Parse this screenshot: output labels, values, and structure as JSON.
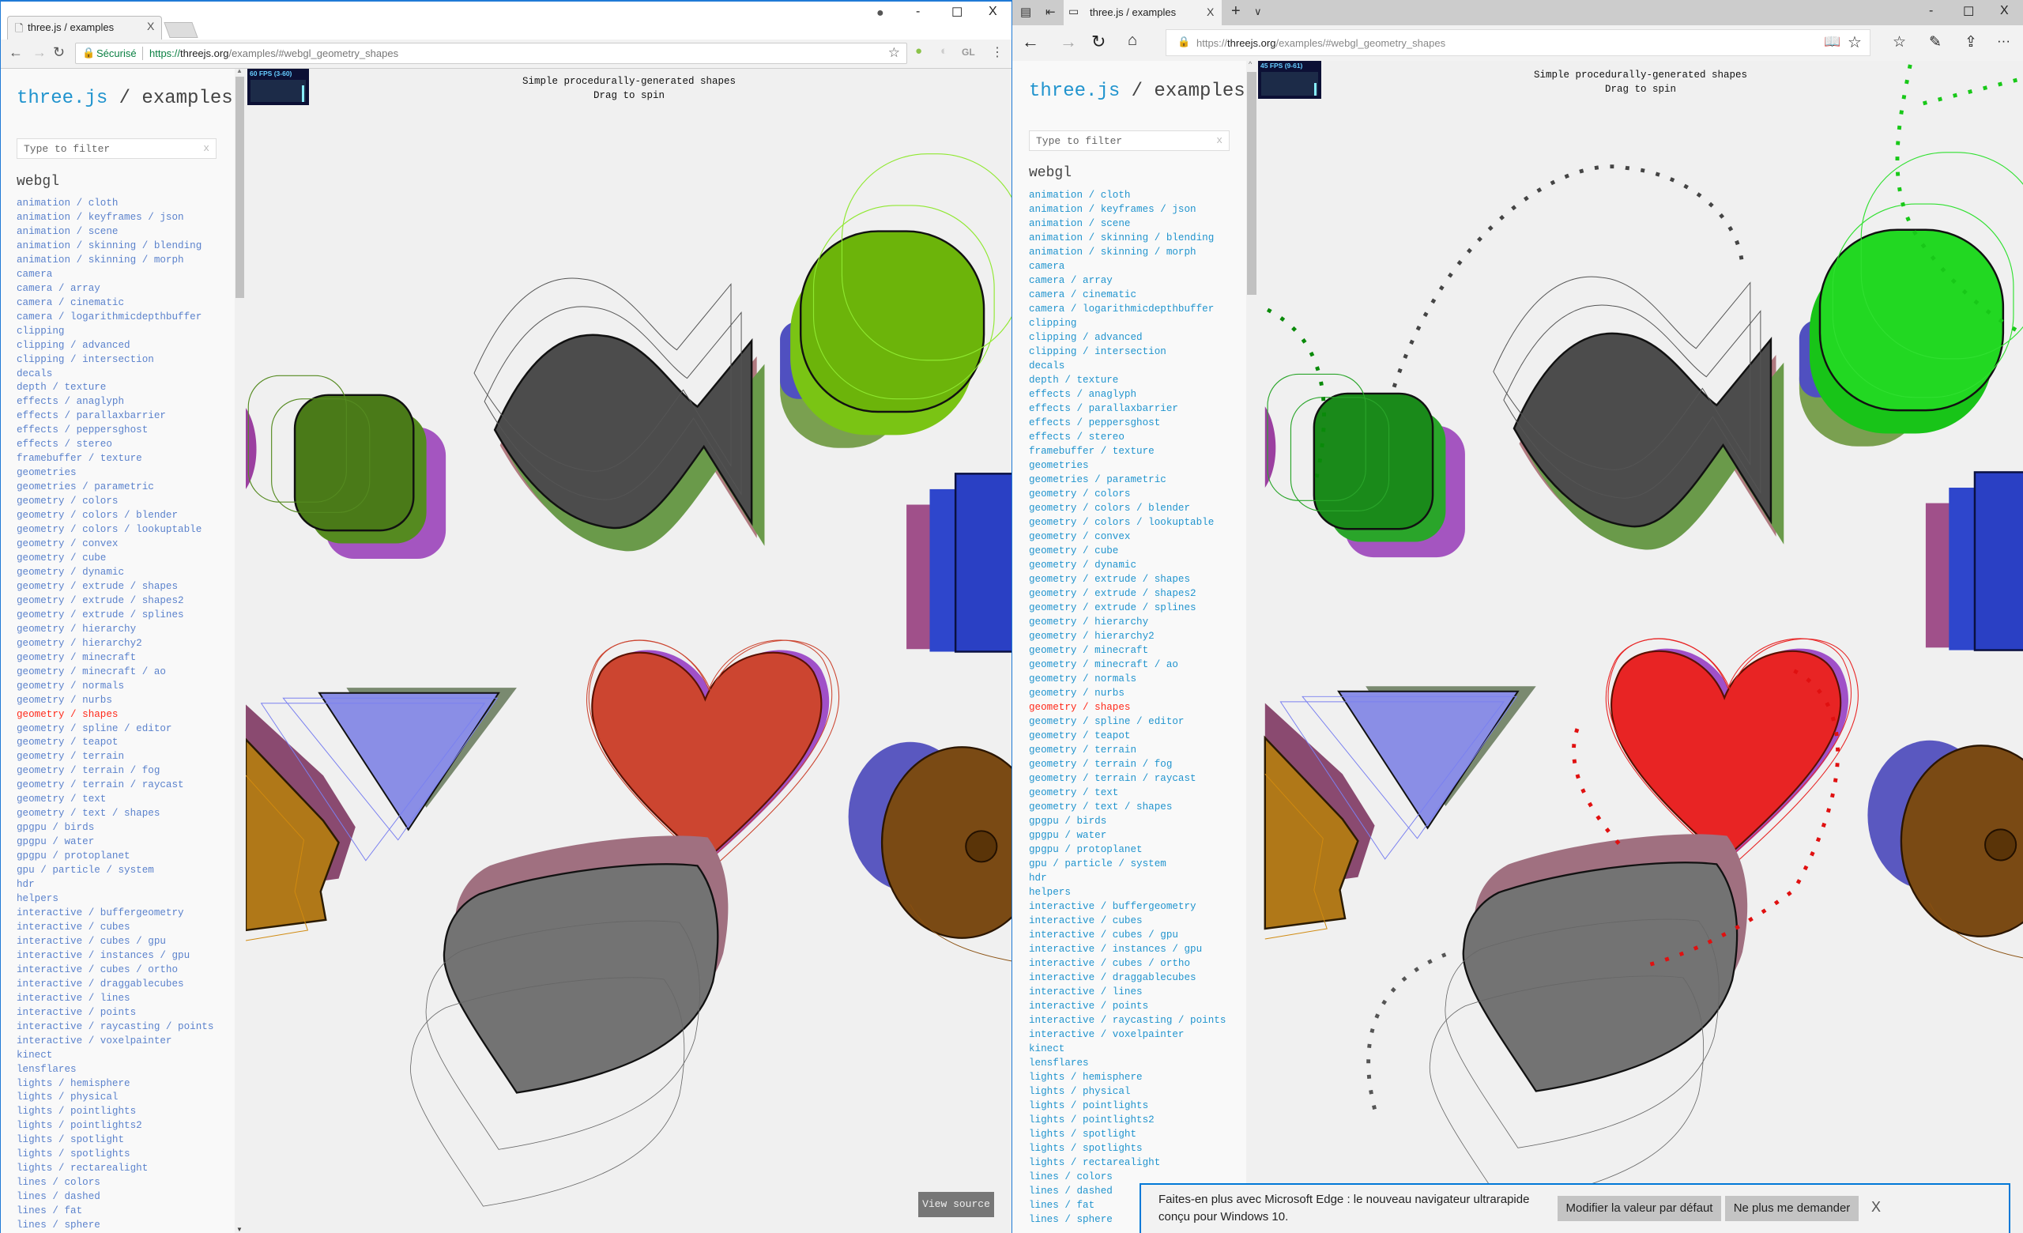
{
  "left_browser": {
    "tab_title": "three.js / examples",
    "tab_close": "X",
    "security_label": "Sécurisé",
    "url_scheme": "https://",
    "url_host": "threejs.org",
    "url_path": "/examples/#webgl_geometry_shapes",
    "extension_gl": "GL",
    "window_controls": {
      "minimize": "-",
      "maximize": "☐",
      "close": "X"
    },
    "fps": "60 FPS (3-60)",
    "fps_level": 0.75
  },
  "right_browser": {
    "tab_title": "three.js / examples",
    "tab_close": "X",
    "new_tab": "+",
    "tab_menu": "∨",
    "url_scheme": "https://",
    "url_host": "threejs.org",
    "url_path": "/examples/#webgl_geometry_shapes",
    "more": "···",
    "window_controls": {
      "minimize": "-",
      "maximize": "☐",
      "close": "X"
    },
    "fps": "45 FPS (9-61)",
    "fps_level": 0.55,
    "notification": {
      "line1": "Faites-en plus avec Microsoft Edge : le nouveau navigateur ultrarapide",
      "line2": "conçu pour Windows 10.",
      "button_default": "Modifier la valeur par défaut",
      "button_never": "Ne plus me demander",
      "close": "X"
    }
  },
  "sidebar": {
    "brand": "three.js",
    "title_rest": " / examples",
    "filter_placeholder": "Type to filter",
    "filter_clear": "x",
    "section": "webgl",
    "selected_index": 36,
    "items": [
      "animation / cloth",
      "animation / keyframes / json",
      "animation / scene",
      "animation / skinning / blending",
      "animation / skinning / morph",
      "camera",
      "camera / array",
      "camera / cinematic",
      "camera / logarithmicdepthbuffer",
      "clipping",
      "clipping / advanced",
      "clipping / intersection",
      "decals",
      "depth / texture",
      "effects / anaglyph",
      "effects / parallaxbarrier",
      "effects / peppersghost",
      "effects / stereo",
      "framebuffer / texture",
      "geometries",
      "geometries / parametric",
      "geometry / colors",
      "geometry / colors / blender",
      "geometry / colors / lookuptable",
      "geometry / convex",
      "geometry / cube",
      "geometry / dynamic",
      "geometry / extrude / shapes",
      "geometry / extrude / shapes2",
      "geometry / extrude / splines",
      "geometry / hierarchy",
      "geometry / hierarchy2",
      "geometry / minecraft",
      "geometry / minecraft / ao",
      "geometry / normals",
      "geometry / nurbs",
      "geometry / shapes",
      "geometry / spline / editor",
      "geometry / teapot",
      "geometry / terrain",
      "geometry / terrain / fog",
      "geometry / terrain / raycast",
      "geometry / text",
      "geometry / text / shapes",
      "gpgpu / birds",
      "gpgpu / water",
      "gpgpu / protoplanet",
      "gpu / particle / system",
      "hdr",
      "helpers",
      "interactive / buffergeometry",
      "interactive / cubes",
      "interactive / cubes / gpu",
      "interactive / instances / gpu",
      "interactive / cubes / ortho",
      "interactive / draggablecubes",
      "interactive / lines",
      "interactive / points",
      "interactive / raycasting / points",
      "interactive / voxelpainter",
      "kinect",
      "lensflares",
      "lights / hemisphere",
      "lights / physical",
      "lights / pointlights",
      "lights / pointlights2",
      "lights / spotlight",
      "lights / spotlights",
      "lights / rectarealight",
      "lines / colors",
      "lines / dashed",
      "lines / fat",
      "lines / sphere"
    ]
  },
  "canvas": {
    "info_line1": "Simple procedurally-generated shapes",
    "info_line2": "Drag to spin",
    "view_source": "View source"
  },
  "colors": {
    "link_left": "#5b82cc",
    "link_right": "#2194ce",
    "selected": "#ff2a1a",
    "brand": "#2194ce",
    "edge_accent": "#0078d7"
  }
}
